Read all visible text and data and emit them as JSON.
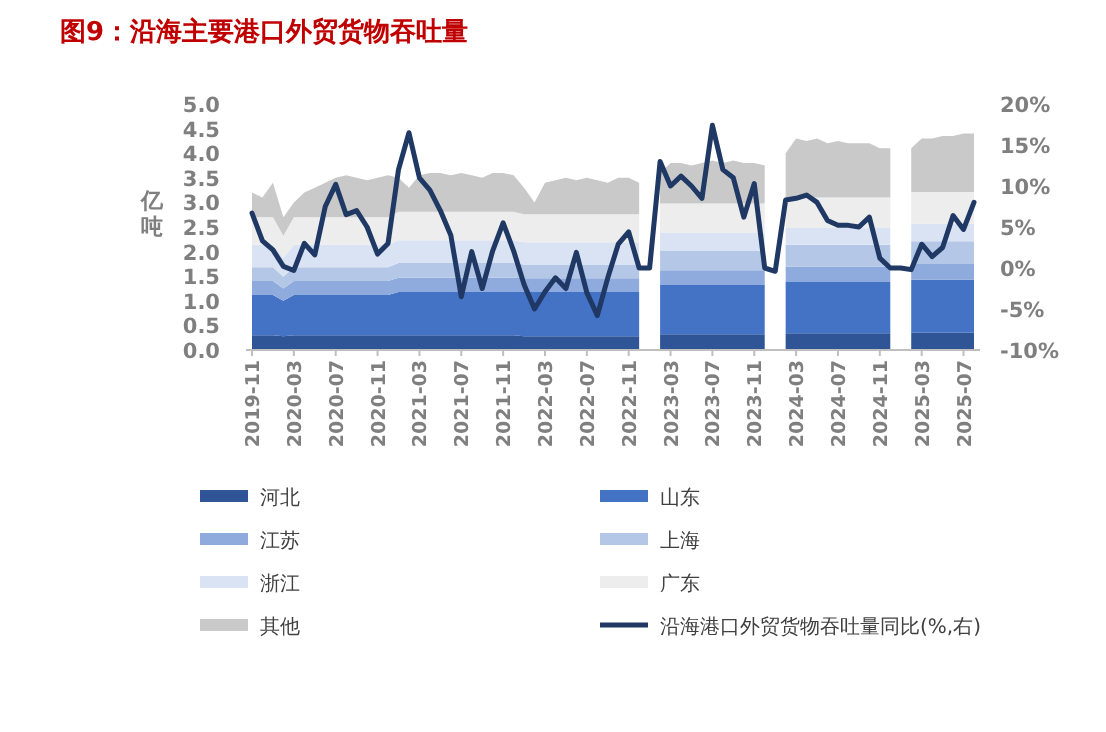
{
  "chart_data": {
    "type": "area",
    "title": "图9：沿海主要港口外贸货物吞吐量",
    "ylabel": "亿吨",
    "stacked": true,
    "legend": "bottom",
    "categories": [
      "2019-11",
      null,
      null,
      null,
      "2020-03",
      null,
      null,
      null,
      "2020-07",
      null,
      null,
      null,
      "2020-11",
      null,
      null,
      null,
      "2021-03",
      null,
      null,
      null,
      "2021-07",
      null,
      null,
      null,
      "2021-11",
      null,
      null,
      null,
      "2022-03",
      null,
      null,
      null,
      "2022-07",
      null,
      null,
      null,
      "2022-11",
      null,
      null,
      null,
      "2023-03",
      null,
      null,
      null,
      "2023-07",
      null,
      null,
      null,
      "2023-11",
      null,
      null,
      null,
      "2024-03",
      null,
      null,
      null,
      "2024-07",
      null,
      null,
      null,
      "2024-11",
      null,
      null,
      null,
      "2025-03",
      null,
      null,
      null,
      "2025-07",
      null
    ],
    "ylim": [
      0,
      5
    ],
    "yticks": [
      {
        "value": 0,
        "label": "0.0"
      },
      {
        "value": 0.5,
        "label": "0.5"
      },
      {
        "value": 1,
        "label": "1.0"
      },
      {
        "value": 1.5,
        "label": "1.5"
      },
      {
        "value": 2,
        "label": "2.0"
      },
      {
        "value": 2.5,
        "label": "2.5"
      },
      {
        "value": 3,
        "label": "3.0"
      },
      {
        "value": 3.5,
        "label": "3.5"
      },
      {
        "value": 4,
        "label": "4.0"
      },
      {
        "value": 4.5,
        "label": "4.5"
      },
      {
        "value": 5,
        "label": "5.0"
      }
    ],
    "y2lim": [
      -10,
      20
    ],
    "y2ticks": [
      {
        "value": -10,
        "label": "-10%"
      },
      {
        "value": -5,
        "label": "-5%"
      },
      {
        "value": 0,
        "label": "0%"
      },
      {
        "value": 5,
        "label": "5%"
      },
      {
        "value": 10,
        "label": "10%"
      },
      {
        "value": 15,
        "label": "15%"
      },
      {
        "value": 20,
        "label": "20%"
      }
    ],
    "series": [
      {
        "name": "河北",
        "type": "area",
        "color": "#2f5597",
        "values": [
          0.3,
          0.3,
          0.3,
          0.28,
          0.3,
          0.3,
          0.3,
          0.3,
          0.3,
          0.3,
          0.3,
          0.3,
          0.3,
          0.3,
          0.3,
          0.3,
          0.3,
          0.3,
          0.3,
          0.3,
          0.3,
          0.3,
          0.3,
          0.3,
          0.3,
          0.3,
          0.28,
          0.28,
          0.28,
          0.28,
          0.28,
          0.28,
          0.28,
          0.28,
          0.28,
          0.28,
          0.28,
          0.28,
          null,
          0.32,
          0.32,
          0.32,
          0.32,
          0.32,
          0.32,
          0.32,
          0.32,
          0.32,
          0.32,
          0.32,
          null,
          0.34,
          0.34,
          0.34,
          0.34,
          0.34,
          0.34,
          0.34,
          0.34,
          0.34,
          0.34,
          0.34,
          null,
          0.35,
          0.35,
          0.35,
          0.35,
          0.35,
          0.35,
          0.35
        ]
      },
      {
        "name": "山东",
        "type": "area",
        "color": "#4472c4",
        "values": [
          0.82,
          0.82,
          0.82,
          0.72,
          0.82,
          0.82,
          0.82,
          0.82,
          0.82,
          0.82,
          0.82,
          0.82,
          0.82,
          0.82,
          0.88,
          0.88,
          0.88,
          0.88,
          0.88,
          0.88,
          0.88,
          0.88,
          0.88,
          0.88,
          0.88,
          0.88,
          0.9,
          0.9,
          0.9,
          0.9,
          0.9,
          0.9,
          0.9,
          0.9,
          0.9,
          0.9,
          0.9,
          0.9,
          null,
          1.0,
          1.0,
          1.0,
          1.0,
          1.0,
          1.0,
          1.0,
          1.0,
          1.0,
          1.0,
          1.0,
          null,
          1.04,
          1.04,
          1.04,
          1.04,
          1.04,
          1.04,
          1.04,
          1.04,
          1.04,
          1.04,
          1.04,
          null,
          1.08,
          1.08,
          1.08,
          1.08,
          1.08,
          1.08,
          1.08
        ]
      },
      {
        "name": "江苏",
        "type": "area",
        "color": "#8faadc",
        "values": [
          0.28,
          0.28,
          0.28,
          0.25,
          0.28,
          0.28,
          0.28,
          0.28,
          0.28,
          0.28,
          0.28,
          0.28,
          0.28,
          0.28,
          0.29,
          0.29,
          0.29,
          0.29,
          0.29,
          0.29,
          0.29,
          0.29,
          0.29,
          0.29,
          0.29,
          0.29,
          0.28,
          0.28,
          0.28,
          0.28,
          0.28,
          0.28,
          0.28,
          0.28,
          0.28,
          0.28,
          0.28,
          0.28,
          null,
          0.3,
          0.3,
          0.3,
          0.3,
          0.3,
          0.3,
          0.3,
          0.3,
          0.3,
          0.3,
          0.3,
          null,
          0.31,
          0.31,
          0.31,
          0.31,
          0.31,
          0.31,
          0.31,
          0.31,
          0.31,
          0.31,
          0.31,
          null,
          0.32,
          0.32,
          0.32,
          0.32,
          0.32,
          0.32,
          0.32
        ]
      },
      {
        "name": "上海",
        "type": "area",
        "color": "#b4c7e7",
        "values": [
          0.28,
          0.28,
          0.28,
          0.24,
          0.28,
          0.28,
          0.28,
          0.28,
          0.28,
          0.28,
          0.28,
          0.28,
          0.28,
          0.28,
          0.3,
          0.3,
          0.3,
          0.3,
          0.3,
          0.3,
          0.3,
          0.3,
          0.3,
          0.3,
          0.3,
          0.3,
          0.28,
          0.28,
          0.28,
          0.28,
          0.28,
          0.28,
          0.28,
          0.28,
          0.28,
          0.28,
          0.28,
          0.28,
          null,
          0.4,
          0.4,
          0.4,
          0.4,
          0.4,
          0.4,
          0.4,
          0.4,
          0.4,
          0.4,
          0.4,
          null,
          0.45,
          0.45,
          0.45,
          0.45,
          0.45,
          0.45,
          0.45,
          0.45,
          0.45,
          0.45,
          0.45,
          null,
          0.46,
          0.46,
          0.46,
          0.46,
          0.46,
          0.46,
          0.46
        ]
      },
      {
        "name": "浙江",
        "type": "area",
        "color": "#dae3f3",
        "values": [
          0.46,
          0.46,
          0.46,
          0.38,
          0.46,
          0.46,
          0.46,
          0.46,
          0.46,
          0.46,
          0.46,
          0.46,
          0.46,
          0.46,
          0.46,
          0.46,
          0.46,
          0.46,
          0.46,
          0.46,
          0.46,
          0.46,
          0.46,
          0.46,
          0.46,
          0.46,
          0.45,
          0.45,
          0.45,
          0.45,
          0.45,
          0.45,
          0.45,
          0.45,
          0.45,
          0.45,
          0.45,
          0.45,
          null,
          0.36,
          0.36,
          0.36,
          0.36,
          0.36,
          0.36,
          0.36,
          0.36,
          0.36,
          0.36,
          0.36,
          null,
          0.34,
          0.34,
          0.34,
          0.34,
          0.34,
          0.34,
          0.34,
          0.34,
          0.34,
          0.34,
          0.34,
          null,
          0.36,
          0.36,
          0.36,
          0.36,
          0.36,
          0.36,
          0.36
        ]
      },
      {
        "name": "广东",
        "type": "area",
        "color": "#ededed",
        "values": [
          0.56,
          0.56,
          0.56,
          0.45,
          0.56,
          0.56,
          0.56,
          0.56,
          0.56,
          0.56,
          0.56,
          0.56,
          0.56,
          0.56,
          0.58,
          0.58,
          0.58,
          0.58,
          0.58,
          0.58,
          0.58,
          0.58,
          0.58,
          0.58,
          0.58,
          0.58,
          0.57,
          0.57,
          0.57,
          0.57,
          0.57,
          0.57,
          0.57,
          0.57,
          0.57,
          0.57,
          0.57,
          0.57,
          null,
          0.6,
          0.6,
          0.6,
          0.6,
          0.6,
          0.6,
          0.6,
          0.6,
          0.6,
          0.6,
          0.6,
          null,
          0.62,
          0.62,
          0.62,
          0.62,
          0.62,
          0.62,
          0.62,
          0.62,
          0.62,
          0.62,
          0.62,
          null,
          0.64,
          0.64,
          0.64,
          0.64,
          0.64,
          0.64,
          0.64
        ]
      },
      {
        "name": "其他",
        "type": "area",
        "color": "#c9c9c9",
        "values": [
          0.5,
          0.4,
          0.7,
          0.38,
          0.3,
          0.5,
          0.6,
          0.7,
          0.8,
          0.85,
          0.8,
          0.75,
          0.8,
          0.85,
          0.69,
          0.49,
          0.74,
          0.79,
          0.79,
          0.74,
          0.79,
          0.74,
          0.69,
          0.79,
          0.79,
          0.74,
          0.54,
          0.24,
          0.64,
          0.69,
          0.74,
          0.69,
          0.74,
          0.69,
          0.64,
          0.74,
          0.74,
          0.64,
          null,
          0.62,
          0.82,
          0.82,
          0.77,
          0.82,
          0.87,
          0.82,
          0.87,
          0.82,
          0.82,
          0.77,
          null,
          0.9,
          1.2,
          1.15,
          1.2,
          1.1,
          1.15,
          1.1,
          1.1,
          1.1,
          1.0,
          1.0,
          null,
          0.89,
          1.09,
          1.09,
          1.14,
          1.14,
          1.19,
          1.19
        ]
      },
      {
        "name": "沿海港口外贸货物吞吐量同比(%,右)",
        "type": "line",
        "axis": "y2",
        "color": "#1f3864",
        "values": [
          6.7,
          3.3,
          2.2,
          0.2,
          -0.3,
          3.0,
          1.6,
          7.5,
          10.2,
          6.5,
          7.0,
          5.0,
          1.7,
          3.0,
          12.0,
          16.5,
          11.0,
          9.5,
          7.0,
          4.0,
          -3.5,
          2.0,
          -2.5,
          2.1,
          5.5,
          2.1,
          -2.0,
          -5.0,
          -2.9,
          -1.2,
          -2.5,
          1.9,
          -3.0,
          -5.8,
          -1.2,
          2.9,
          4.4,
          0.0,
          0.0,
          13.0,
          10.0,
          11.2,
          10.0,
          8.5,
          17.4,
          12.0,
          11.0,
          6.2,
          10.3,
          0.0,
          -0.4,
          8.3,
          8.5,
          8.9,
          8.0,
          5.8,
          5.2,
          5.2,
          5.0,
          6.2,
          1.2,
          0.0,
          0.0,
          -0.2,
          2.9,
          1.4,
          2.5,
          6.4,
          4.7,
          8.0
        ]
      }
    ]
  }
}
